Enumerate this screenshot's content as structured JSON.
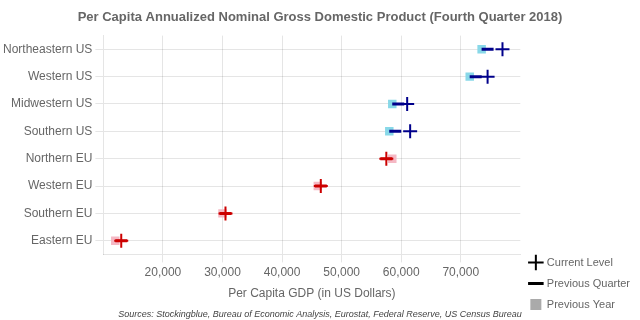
{
  "chart_data": {
    "type": "scatter",
    "orientation": "horizontal",
    "title": "Per Capita Annualized Nominal Gross Domestic Product (Fourth Quarter 2018)",
    "xlabel": "Per Capita GDP (in US Dollars)",
    "annotations": [
      "Sources: Stockingblue, Bureau of Economic Analysis, Eurostat, Federal Reserve, US Census Bureau"
    ],
    "categories": [
      "Northeastern US",
      "Western US",
      "Midwestern US",
      "Southern US",
      "Northern EU",
      "Western EU",
      "Southern EU",
      "Eastern EU"
    ],
    "series": [
      {
        "name": "Current Level",
        "marker": "plus",
        "color": "#000000",
        "colors": [
          "#00008B",
          "#00008B",
          "#00008B",
          "#00008B",
          "#cc0000",
          "#cc0000",
          "#cc0000",
          "#cc0000"
        ],
        "values": [
          77000,
          74500,
          61000,
          61500,
          57500,
          46500,
          30500,
          13000
        ]
      },
      {
        "name": "Previous Quarter",
        "marker": "dash",
        "color": "#000000",
        "colors": [
          "#00008B",
          "#00008B",
          "#00008B",
          "#00008B",
          "#cc0000",
          "#cc0000",
          "#cc0000",
          "#cc0000"
        ],
        "values": [
          74500,
          72500,
          59500,
          59000,
          57500,
          46500,
          30500,
          13000
        ]
      },
      {
        "name": "Previous Year",
        "marker": "square",
        "color": "#aaaaaa",
        "colors": [
          "#88d8e8",
          "#88d8e8",
          "#88d8e8",
          "#88d8e8",
          "#f5b8c4",
          "#f5b8c4",
          "#f5b8c4",
          "#f5b8c4"
        ],
        "values": [
          73500,
          71500,
          58500,
          58000,
          58500,
          46000,
          30000,
          12000
        ]
      }
    ],
    "xlim": [
      10000,
      80000
    ],
    "xticks": [
      {
        "value": 20000,
        "label": "20,000"
      },
      {
        "value": 30000,
        "label": "30,000"
      },
      {
        "value": 40000,
        "label": "40,000"
      },
      {
        "value": 50000,
        "label": "50,000"
      },
      {
        "value": 60000,
        "label": "60,000"
      },
      {
        "value": 70000,
        "label": "70,000"
      }
    ],
    "grid": true,
    "legend": "lower right"
  }
}
